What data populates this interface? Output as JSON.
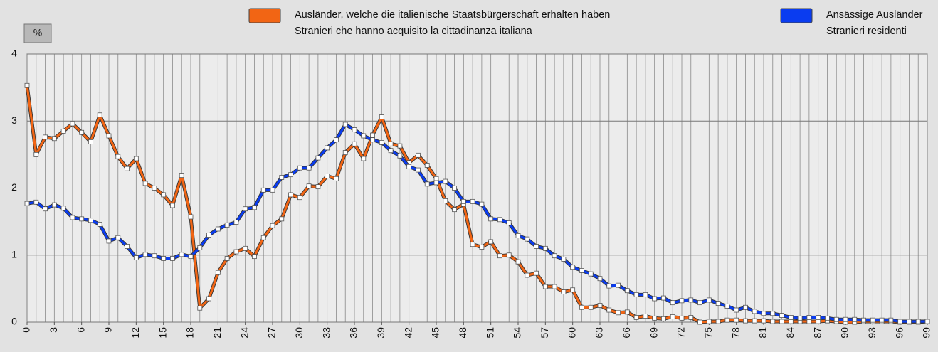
{
  "chart_data": {
    "type": "line",
    "ylabel": "%",
    "x": [
      0,
      1,
      2,
      3,
      4,
      5,
      6,
      7,
      8,
      9,
      10,
      11,
      12,
      13,
      14,
      15,
      16,
      17,
      18,
      19,
      20,
      21,
      22,
      23,
      24,
      25,
      26,
      27,
      28,
      29,
      30,
      31,
      32,
      33,
      34,
      35,
      36,
      37,
      38,
      39,
      40,
      41,
      42,
      43,
      44,
      45,
      46,
      47,
      48,
      49,
      50,
      51,
      52,
      53,
      54,
      55,
      56,
      57,
      58,
      59,
      60,
      61,
      62,
      63,
      64,
      65,
      66,
      67,
      68,
      69,
      70,
      71,
      72,
      73,
      74,
      75,
      76,
      77,
      78,
      79,
      80,
      81,
      82,
      83,
      84,
      85,
      86,
      87,
      88,
      89,
      90,
      91,
      92,
      93,
      94,
      95,
      96,
      97,
      98,
      99
    ],
    "xlim": [
      0,
      99
    ],
    "xticks": [
      0,
      3,
      6,
      9,
      12,
      15,
      18,
      21,
      24,
      27,
      30,
      33,
      36,
      39,
      42,
      45,
      48,
      51,
      54,
      57,
      60,
      63,
      66,
      69,
      72,
      75,
      78,
      81,
      84,
      87,
      90,
      93,
      96,
      99
    ],
    "ylim": [
      0,
      4
    ],
    "yticks": [
      0,
      1,
      2,
      3,
      4
    ],
    "grid": true,
    "series": [
      {
        "name": [
          "Ausländer, welche die italienische Staatsbürgerschaft erhalten haben",
          "Stranieri che hanno acquisito la cittadinanza italiana"
        ],
        "color": "#f26514",
        "values": [
          3.53,
          2.5,
          2.76,
          2.74,
          2.85,
          2.96,
          2.83,
          2.69,
          3.09,
          2.78,
          2.47,
          2.29,
          2.44,
          2.07,
          2.0,
          1.9,
          1.74,
          2.19,
          1.57,
          0.21,
          0.35,
          0.74,
          0.95,
          1.05,
          1.1,
          0.98,
          1.26,
          1.44,
          1.54,
          1.9,
          1.86,
          2.03,
          2.02,
          2.18,
          2.14,
          2.53,
          2.66,
          2.44,
          2.79,
          3.06,
          2.66,
          2.63,
          2.38,
          2.49,
          2.34,
          2.14,
          1.81,
          1.68,
          1.76,
          1.16,
          1.12,
          1.2,
          0.99,
          1.0,
          0.9,
          0.7,
          0.73,
          0.53,
          0.53,
          0.45,
          0.48,
          0.22,
          0.22,
          0.25,
          0.18,
          0.14,
          0.15,
          0.07,
          0.09,
          0.06,
          0.05,
          0.08,
          0.06,
          0.07,
          0.0,
          0.01,
          0.01,
          0.03,
          0.03,
          0.02,
          0.02,
          0.02,
          0.01,
          0.01,
          0.01,
          0.01,
          0.01,
          0.01,
          0.02,
          0.01,
          0.0,
          0.0,
          0.01,
          0.01,
          0.01,
          0.01,
          0.0,
          0.0,
          0.0,
          0.01
        ]
      },
      {
        "name": [
          "Ansässige Ausländer",
          "Stranieri residenti"
        ],
        "color": "#0a3cf0",
        "values": [
          1.77,
          1.79,
          1.69,
          1.75,
          1.7,
          1.56,
          1.54,
          1.52,
          1.46,
          1.21,
          1.26,
          1.13,
          0.96,
          1.01,
          0.99,
          0.95,
          0.95,
          1.01,
          0.98,
          1.11,
          1.3,
          1.39,
          1.45,
          1.49,
          1.69,
          1.71,
          1.97,
          1.97,
          2.16,
          2.2,
          2.3,
          2.3,
          2.45,
          2.6,
          2.72,
          2.95,
          2.87,
          2.78,
          2.72,
          2.68,
          2.56,
          2.48,
          2.32,
          2.27,
          2.06,
          2.08,
          2.1,
          2.0,
          1.8,
          1.8,
          1.76,
          1.54,
          1.53,
          1.48,
          1.29,
          1.24,
          1.13,
          1.1,
          0.99,
          0.94,
          0.82,
          0.77,
          0.72,
          0.65,
          0.54,
          0.55,
          0.47,
          0.41,
          0.41,
          0.35,
          0.36,
          0.29,
          0.32,
          0.33,
          0.29,
          0.33,
          0.28,
          0.24,
          0.18,
          0.22,
          0.16,
          0.13,
          0.13,
          0.1,
          0.07,
          0.06,
          0.07,
          0.07,
          0.06,
          0.04,
          0.04,
          0.04,
          0.03,
          0.03,
          0.03,
          0.03,
          0.01,
          0.01,
          0.01,
          0.01
        ]
      }
    ]
  }
}
